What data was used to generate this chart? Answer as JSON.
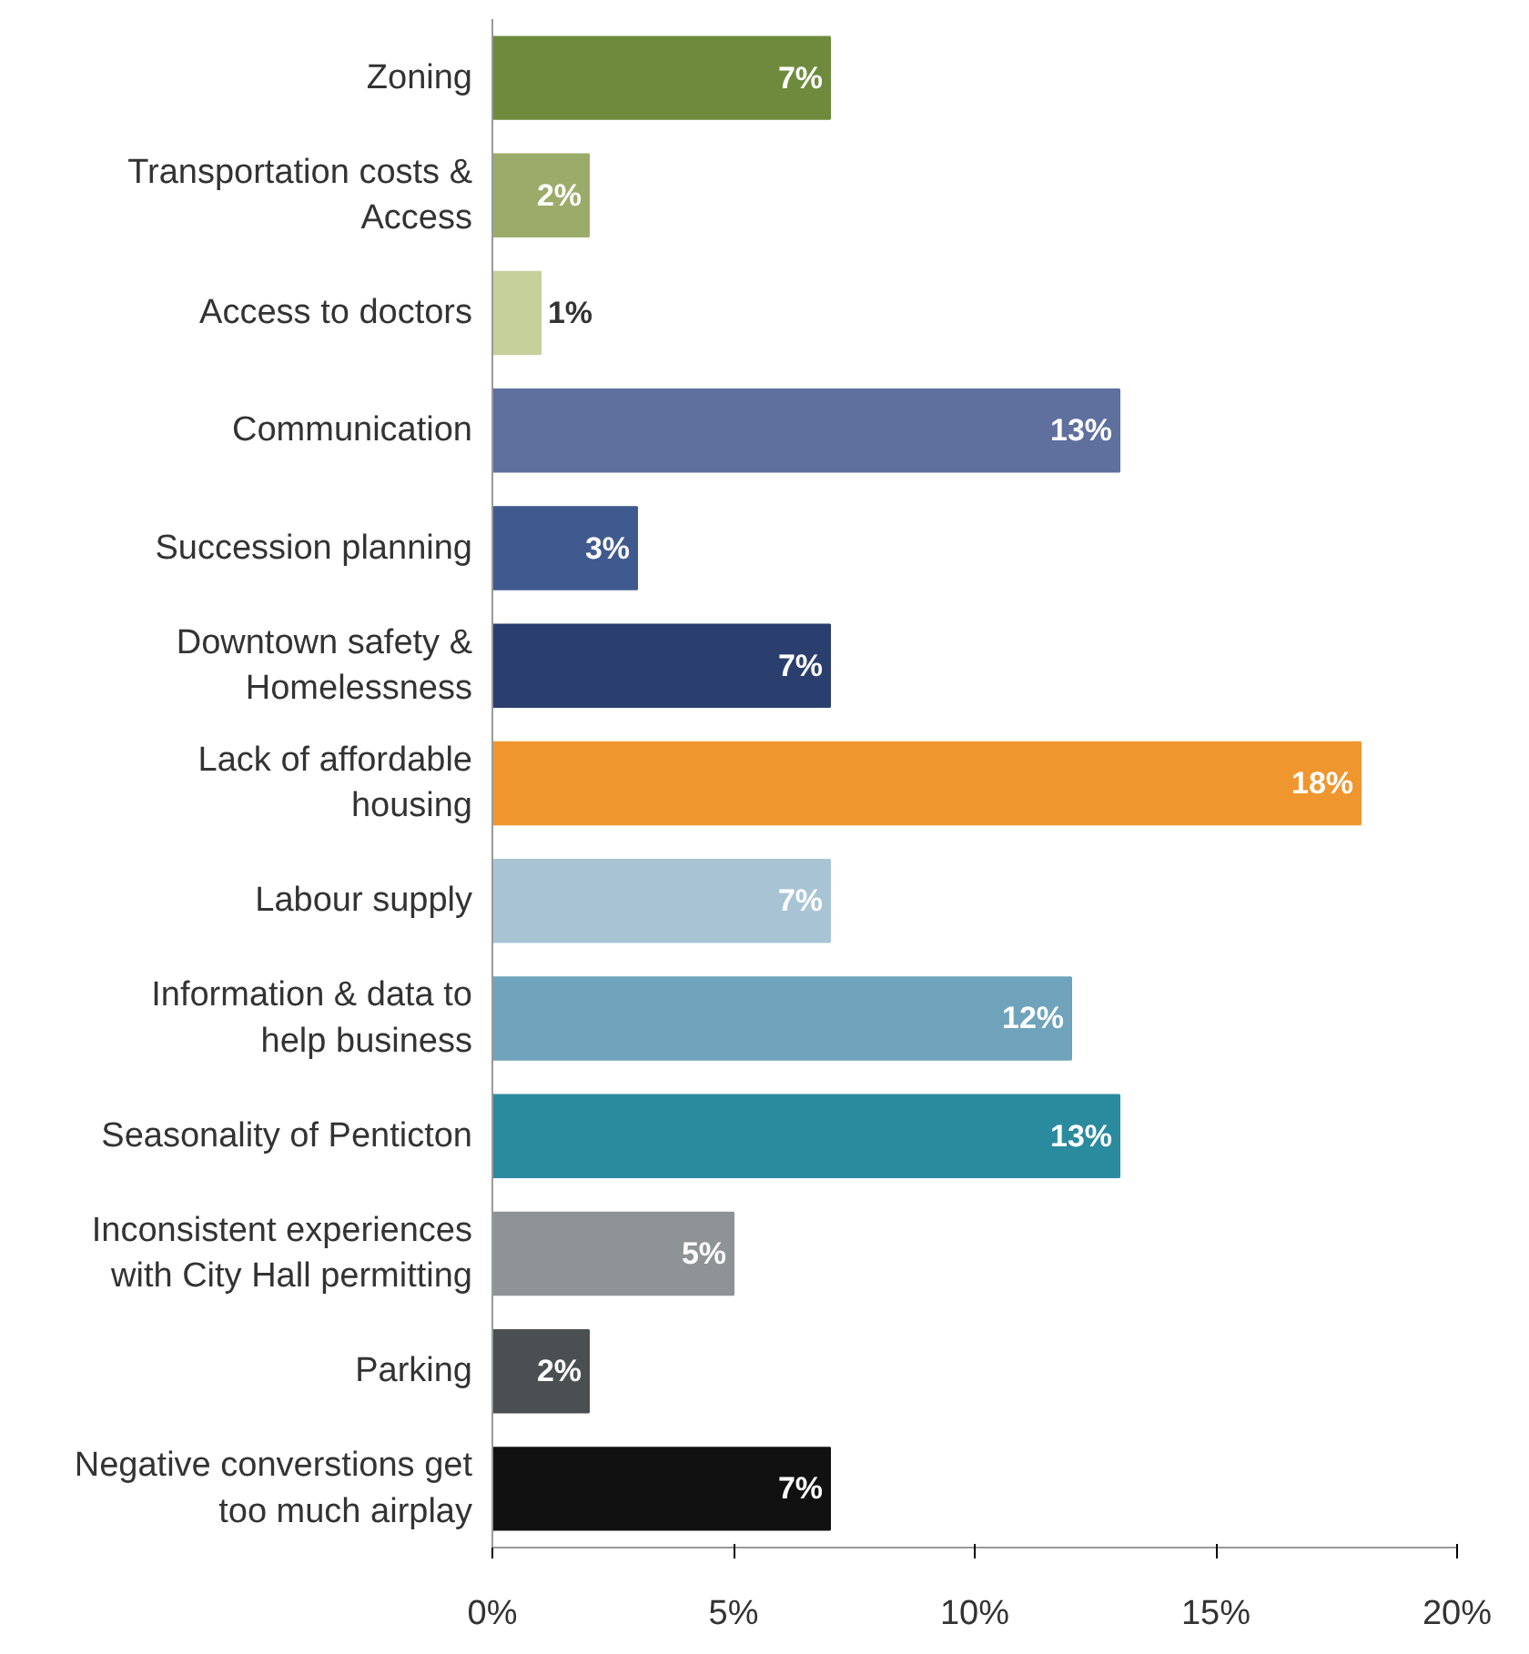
{
  "chart_data": {
    "type": "bar",
    "orientation": "horizontal",
    "categories": [
      "Zoning",
      "Transportation costs & Access",
      "Access to doctors",
      "Communication",
      "Succession planning",
      "Downtown safety & Homelessness",
      "Lack of affordable housing",
      "Labour supply",
      "Information & data to help business",
      "Seasonality of Penticton",
      "Inconsistent experiences with City Hall permitting",
      "Parking",
      "Negative converstions get too much airplay"
    ],
    "values": [
      7,
      2,
      1,
      13,
      3,
      7,
      18,
      7,
      12,
      13,
      5,
      2,
      7
    ],
    "colors": [
      "#6e8b3d",
      "#9bab6a",
      "#c5d09a",
      "#5f6f9e",
      "#3f5a8e",
      "#2a3f6e",
      "#f0962e",
      "#a8c4d4",
      "#6fa3bb",
      "#2a8a9e",
      "#8e9396",
      "#4a4f52",
      "#111111"
    ],
    "value_labels": [
      "7%",
      "2%",
      "1%",
      "13%",
      "3%",
      "7%",
      "18%",
      "7%",
      "12%",
      "13%",
      "5%",
      "2%",
      "7%"
    ],
    "xlim": [
      0,
      20
    ],
    "xticks": [
      {
        "value": 0,
        "label": "0%"
      },
      {
        "value": 5,
        "label": "5%"
      },
      {
        "value": 10,
        "label": "10%"
      },
      {
        "value": 15,
        "label": "15%"
      },
      {
        "value": 20,
        "label": "20%"
      }
    ],
    "grid": false
  }
}
